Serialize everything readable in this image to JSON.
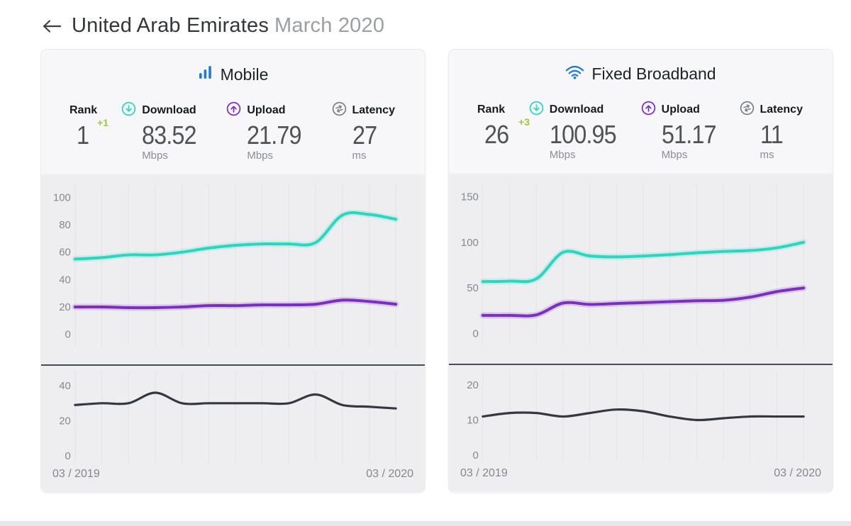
{
  "header": {
    "back_icon": "left-arrow",
    "title": "United Arab Emirates",
    "subtitle": "March 2020"
  },
  "colors": {
    "download_teal": "#2bd6c0",
    "upload_purple": "#7b2ec0",
    "latency_line": "#343940",
    "rank_change_green": "#9dc83d",
    "brand_icon_blue": "#1f7ad6",
    "chart_background": "#eeeef1",
    "card_background": "#f7f7f9",
    "gridline": "#e3e3e8",
    "axis_text": "#85888e",
    "divider": "#484d55"
  },
  "cards": [
    {
      "title": "Mobile",
      "icon": "mobile-signal-bars-icon",
      "stats": [
        {
          "label": "Rank",
          "value": "1",
          "change": "+1"
        },
        {
          "label": "Download",
          "icon": "download-icon",
          "value": "83.52",
          "unit": "Mbps"
        },
        {
          "label": "Upload",
          "icon": "upload-icon",
          "value": "21.79",
          "unit": "Mbps"
        },
        {
          "label": "Latency",
          "icon": "latency-icon",
          "value": "27",
          "unit": "ms"
        }
      ]
    },
    {
      "title": "Fixed Broadband",
      "icon": "wifi-icon",
      "stats": [
        {
          "label": "Rank",
          "value": "26",
          "change": "+3"
        },
        {
          "label": "Download",
          "icon": "download-icon",
          "value": "100.95",
          "unit": "Mbps"
        },
        {
          "label": "Upload",
          "icon": "upload-icon",
          "value": "51.17",
          "unit": "Mbps"
        },
        {
          "label": "Latency",
          "icon": "latency-icon",
          "value": "11",
          "unit": "ms"
        }
      ]
    }
  ],
  "chart_data": [
    {
      "id": "mobile-speed",
      "type": "line",
      "x_label_start": "03 / 2019",
      "x_label_end": "03 / 2020",
      "x_unit": "month",
      "n_points": 13,
      "ylim": [
        0,
        100
      ],
      "yticks": [
        100,
        80,
        60,
        40,
        20,
        0
      ],
      "grid": "vertical-monthly",
      "legend": "none",
      "series": [
        {
          "name": "Download (Mbps)",
          "color": "#2bd6c0",
          "glow": true,
          "values": [
            55,
            56,
            58,
            58,
            60,
            63,
            65,
            66,
            66,
            67,
            87,
            87.5,
            84
          ]
        },
        {
          "name": "Upload (Mbps)",
          "color": "#7b2ec0",
          "glow": true,
          "values": [
            20,
            20,
            19.5,
            19.5,
            20,
            21,
            21,
            21.5,
            21.5,
            22,
            25,
            24,
            22
          ]
        }
      ]
    },
    {
      "id": "mobile-latency",
      "type": "line",
      "x_unit": "month",
      "n_points": 13,
      "ylim": [
        0,
        40
      ],
      "yticks": [
        40,
        20,
        0
      ],
      "grid": "vertical-monthly",
      "legend": "none",
      "series": [
        {
          "name": "Latency (ms)",
          "color": "#343940",
          "glow": false,
          "values": [
            29,
            30,
            30,
            36,
            30,
            30,
            30,
            30,
            30,
            35,
            29,
            28,
            27
          ]
        }
      ]
    },
    {
      "id": "fixed-speed",
      "type": "line",
      "x_label_start": "03 / 2019",
      "x_label_end": "03 / 2020",
      "x_unit": "month",
      "n_points": 13,
      "ylim": [
        0,
        150
      ],
      "yticks": [
        150,
        100,
        50,
        0
      ],
      "grid": "vertical-monthly",
      "legend": "none",
      "series": [
        {
          "name": "Download (Mbps)",
          "color": "#2bd6c0",
          "glow": true,
          "values": [
            57,
            57.5,
            60,
            89,
            85,
            84,
            85,
            86.5,
            88.5,
            90,
            91,
            94,
            100
          ]
        },
        {
          "name": "Upload (Mbps)",
          "color": "#7b2ec0",
          "glow": true,
          "values": [
            20,
            20,
            20.5,
            33.5,
            32,
            33,
            34,
            35,
            36,
            36.5,
            40,
            46,
            50
          ]
        }
      ]
    },
    {
      "id": "fixed-latency",
      "type": "line",
      "x_unit": "month",
      "n_points": 13,
      "ylim": [
        0,
        20
      ],
      "yticks": [
        20,
        10,
        0
      ],
      "grid": "vertical-monthly",
      "legend": "none",
      "series": [
        {
          "name": "Latency (ms)",
          "color": "#343940",
          "glow": false,
          "values": [
            11,
            12,
            12,
            11,
            12,
            13,
            12.5,
            11,
            10,
            10.5,
            11,
            11,
            11
          ]
        }
      ]
    }
  ]
}
